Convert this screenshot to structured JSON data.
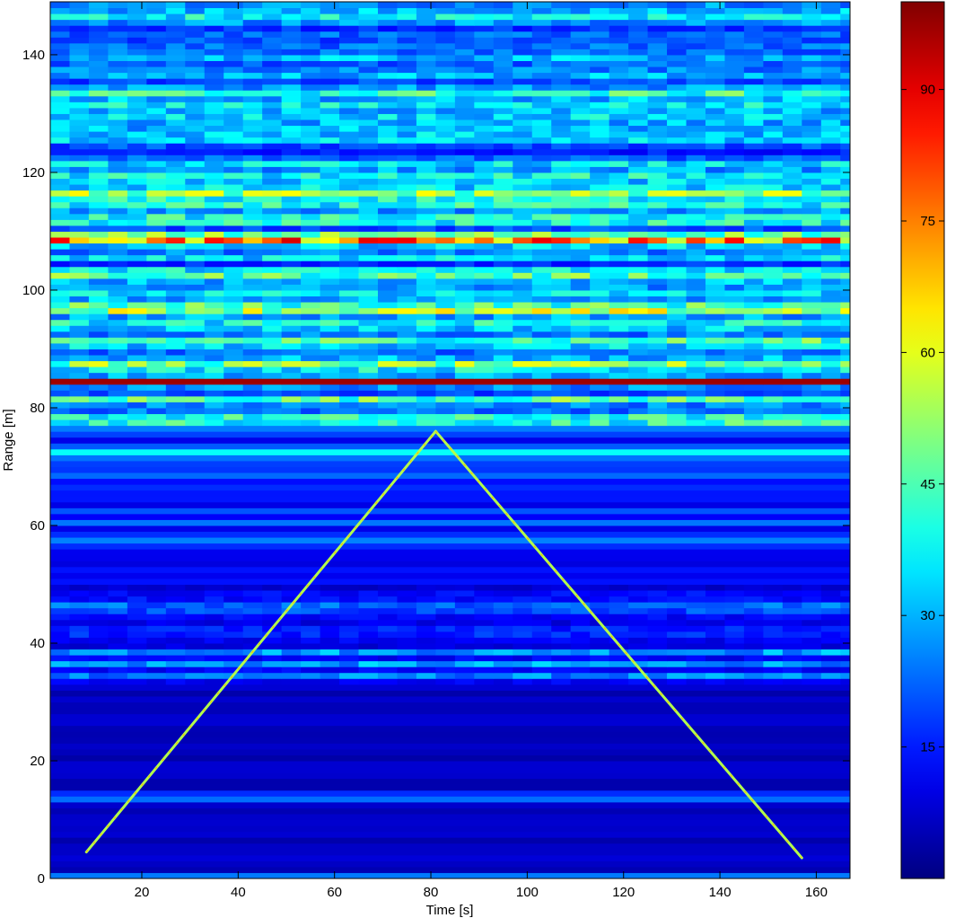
{
  "chart_data": {
    "type": "heatmap",
    "title": "",
    "xlabel": "Time [s]",
    "ylabel": "Range [m]",
    "xlim": [
      1,
      167
    ],
    "ylim": [
      0,
      149
    ],
    "x_ticks": [
      20,
      40,
      60,
      80,
      100,
      120,
      140,
      160
    ],
    "y_ticks": [
      0,
      20,
      40,
      60,
      80,
      100,
      120,
      140
    ],
    "colormap": "jet",
    "color_range": [
      0,
      100
    ],
    "colorbar_ticks": [
      15,
      30,
      45,
      60,
      75,
      90
    ],
    "grid": false,
    "legend": "none",
    "background_level": 8,
    "horizontal_bands": [
      {
        "range": 84.5,
        "width": 0.9,
        "value": 97
      },
      {
        "range": 108.8,
        "width": 0.9,
        "value": 92
      },
      {
        "range": 96.8,
        "width": 1.5,
        "value": 62
      },
      {
        "range": 87.2,
        "width": 1.2,
        "value": 58
      },
      {
        "range": 116.3,
        "width": 1.6,
        "value": 56
      },
      {
        "range": 112.0,
        "width": 1.4,
        "value": 50
      },
      {
        "range": 114.2,
        "width": 1.0,
        "value": 48
      },
      {
        "range": 102.5,
        "width": 1.2,
        "value": 45
      },
      {
        "range": 105.8,
        "width": 1.0,
        "value": 42
      },
      {
        "range": 91.5,
        "width": 1.4,
        "value": 44
      },
      {
        "range": 78.8,
        "width": 0.8,
        "value": 52
      },
      {
        "range": 77.3,
        "width": 0.8,
        "value": 48
      },
      {
        "range": 81.5,
        "width": 0.6,
        "value": 46
      },
      {
        "range": 126.0,
        "width": 1.6,
        "value": 40
      },
      {
        "range": 129.5,
        "width": 1.4,
        "value": 34
      },
      {
        "range": 133.5,
        "width": 0.8,
        "value": 42
      },
      {
        "range": 72.5,
        "width": 0.6,
        "value": 38
      },
      {
        "range": 71.0,
        "width": 0.4,
        "value": 36
      },
      {
        "range": 60.5,
        "width": 0.6,
        "value": 24
      },
      {
        "range": 46.8,
        "width": 0.8,
        "value": 30
      },
      {
        "range": 45.2,
        "width": 0.6,
        "value": 28
      },
      {
        "range": 38.5,
        "width": 0.8,
        "value": 28
      },
      {
        "range": 36.4,
        "width": 0.8,
        "value": 30
      },
      {
        "range": 34.3,
        "width": 0.8,
        "value": 30
      },
      {
        "range": 13.9,
        "width": 0.7,
        "value": 36
      },
      {
        "range": 0.6,
        "width": 0.5,
        "value": 28
      }
    ],
    "target_track": [
      {
        "time": 8.5,
        "range": 4.5
      },
      {
        "time": 81.0,
        "range": 76.0
      },
      {
        "time": 157.0,
        "range": 3.5
      }
    ]
  }
}
